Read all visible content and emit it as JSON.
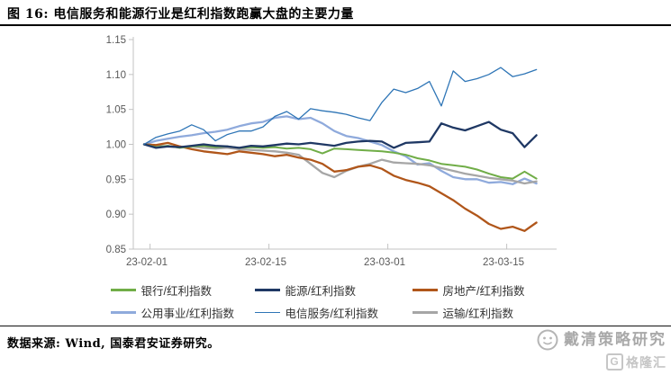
{
  "header": {
    "title": "图 16: 电信服务和能源行业是红利指数跑赢大盘的主要力量"
  },
  "chart_data": {
    "type": "line",
    "title": "",
    "xlabel": "",
    "ylabel": "",
    "ylim": [
      0.85,
      1.15
    ],
    "y_ticks": [
      1.15,
      1.1,
      1.05,
      1.0,
      0.95,
      0.9,
      0.85
    ],
    "x_tick_labels": [
      "23-02-01",
      "23-02-15",
      "23-03-01",
      "23-03-15"
    ],
    "x_tick_indices": [
      0,
      10,
      20,
      30
    ],
    "grid": "off",
    "legend_position": "bottom",
    "x": [
      "23-02-01",
      "23-02-02",
      "23-02-03",
      "23-02-06",
      "23-02-07",
      "23-02-08",
      "23-02-09",
      "23-02-10",
      "23-02-13",
      "23-02-14",
      "23-02-15",
      "23-02-16",
      "23-02-17",
      "23-02-20",
      "23-02-21",
      "23-02-22",
      "23-02-23",
      "23-02-24",
      "23-02-27",
      "23-02-28",
      "23-03-01",
      "23-03-02",
      "23-03-03",
      "23-03-06",
      "23-03-07",
      "23-03-08",
      "23-03-09",
      "23-03-10",
      "23-03-13",
      "23-03-14",
      "23-03-15",
      "23-03-16",
      "23-03-17",
      "23-03-20"
    ],
    "series": [
      {
        "name": "银行/红利指数",
        "color": "#70AD47",
        "width": 2,
        "values": [
          1.0,
          0.996,
          0.998,
          0.995,
          0.997,
          0.998,
          0.996,
          0.997,
          0.995,
          0.996,
          0.995,
          0.996,
          0.994,
          0.995,
          0.993,
          0.987,
          0.994,
          0.993,
          0.992,
          0.991,
          0.99,
          0.988,
          0.985,
          0.98,
          0.977,
          0.972,
          0.97,
          0.968,
          0.964,
          0.958,
          0.953,
          0.951,
          0.961,
          0.951
        ]
      },
      {
        "name": "能源/红利指数",
        "color": "#1F3864",
        "width": 2.3,
        "values": [
          1.0,
          0.995,
          0.997,
          0.996,
          0.998,
          1.0,
          0.998,
          0.997,
          0.995,
          0.998,
          0.997,
          0.999,
          1.001,
          1.0,
          1.002,
          1.0,
          0.998,
          1.002,
          1.004,
          1.005,
          1.004,
          0.995,
          1.002,
          1.003,
          1.004,
          1.03,
          1.024,
          1.02,
          1.026,
          1.032,
          1.021,
          1.016,
          0.996,
          1.013
        ]
      },
      {
        "name": "房地产/红利指数",
        "color": "#B0561A",
        "width": 2.3,
        "values": [
          1.0,
          0.999,
          1.002,
          0.997,
          0.993,
          0.99,
          0.988,
          0.986,
          0.99,
          0.988,
          0.986,
          0.983,
          0.985,
          0.981,
          0.978,
          0.972,
          0.961,
          0.963,
          0.968,
          0.97,
          0.965,
          0.955,
          0.949,
          0.945,
          0.94,
          0.93,
          0.92,
          0.908,
          0.898,
          0.886,
          0.879,
          0.882,
          0.876,
          0.888
        ]
      },
      {
        "name": "公用事业/红利指数",
        "color": "#8FAADC",
        "width": 2.3,
        "values": [
          1.0,
          1.005,
          1.008,
          1.011,
          1.013,
          1.016,
          1.018,
          1.021,
          1.026,
          1.03,
          1.032,
          1.038,
          1.04,
          1.036,
          1.038,
          1.03,
          1.019,
          1.012,
          1.009,
          1.004,
          0.999,
          0.99,
          0.983,
          0.971,
          0.973,
          0.962,
          0.953,
          0.95,
          0.95,
          0.945,
          0.946,
          0.943,
          0.951,
          0.944
        ]
      },
      {
        "name": "电信服务/红利指数",
        "color": "#2E75B6",
        "width": 1.3,
        "values": [
          1.0,
          1.01,
          1.015,
          1.019,
          1.028,
          1.021,
          1.005,
          1.014,
          1.019,
          1.019,
          1.025,
          1.04,
          1.047,
          1.036,
          1.051,
          1.048,
          1.046,
          1.043,
          1.038,
          1.034,
          1.06,
          1.079,
          1.074,
          1.08,
          1.09,
          1.055,
          1.105,
          1.09,
          1.094,
          1.1,
          1.11,
          1.097,
          1.101,
          1.107
        ]
      },
      {
        "name": "运输/红利指数",
        "color": "#A6A6A6",
        "width": 2.3,
        "values": [
          1.0,
          0.998,
          0.997,
          0.996,
          0.997,
          0.995,
          0.994,
          0.995,
          0.993,
          0.992,
          0.991,
          0.99,
          0.988,
          0.985,
          0.972,
          0.959,
          0.953,
          0.962,
          0.968,
          0.972,
          0.978,
          0.974,
          0.973,
          0.972,
          0.97,
          0.966,
          0.962,
          0.958,
          0.955,
          0.952,
          0.95,
          0.948,
          0.944,
          0.947
        ]
      }
    ],
    "axis_color": "#c3c3c3",
    "tick_label_color": "#595959"
  },
  "footer": {
    "source": "数据来源: Wind, 国泰君安证券研究。"
  },
  "watermark": {
    "brand": "戴清策略研究",
    "logo_letter": "G",
    "logo_text": "格隆汇"
  }
}
